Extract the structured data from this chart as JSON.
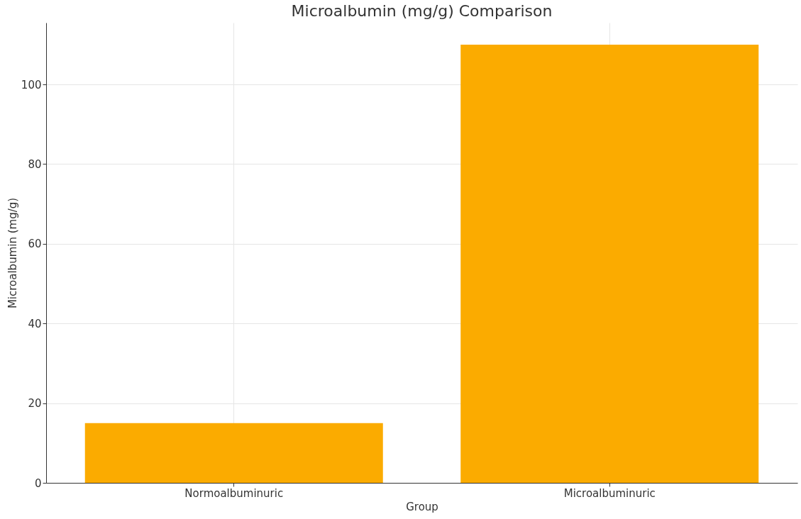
{
  "chart_data": {
    "type": "bar",
    "title": "Microalbumin (mg/g) Comparison",
    "xlabel": "Group",
    "ylabel": "Microalbumin (mg/g)",
    "categories": [
      "Normoalbuminuric",
      "Microalbuminuric"
    ],
    "values": [
      15,
      110
    ],
    "color": "#fbab00",
    "ylim": [
      0,
      115.5
    ],
    "yticks": [
      0,
      20,
      40,
      60,
      80,
      100
    ],
    "grid": true
  }
}
